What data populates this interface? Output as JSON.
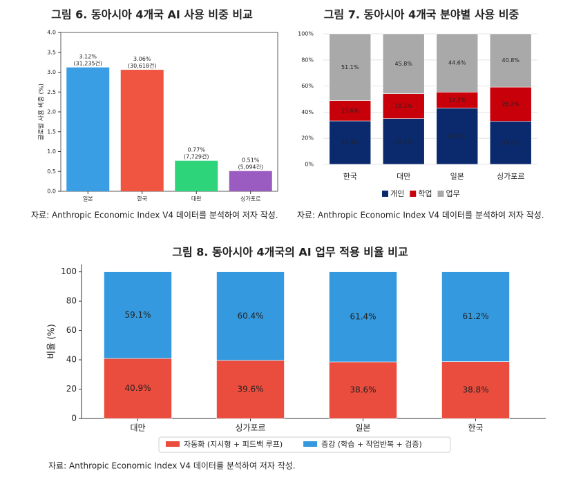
{
  "chart_data": [
    {
      "type": "bar",
      "title": "그림 6. 동아시아 4개국 AI 사용 비중 비교",
      "y_label": "글로벌 사용 비중 (%)",
      "categories": [
        "일본",
        "한국",
        "대만",
        "싱가포르"
      ],
      "values": [
        3.12,
        3.06,
        0.77,
        0.51
      ],
      "value_labels": [
        "3.12%\n(31,235건)",
        "3.06%\n(30,618건)",
        "0.77%\n(7,729건)",
        "0.51%\n(5,094건)"
      ],
      "colors": [
        "#3a9ee4",
        "#ef5540",
        "#2ed47a",
        "#9a5cc0"
      ],
      "ylim": [
        0,
        4
      ],
      "yticks": [
        {
          "value": 0,
          "label": "0.0"
        },
        {
          "value": 0.5,
          "label": "0.5"
        },
        {
          "value": 1,
          "label": "1.0"
        },
        {
          "value": 1.5,
          "label": "1.5"
        },
        {
          "value": 2,
          "label": "2.0"
        },
        {
          "value": 2.5,
          "label": "2.5"
        },
        {
          "value": 3,
          "label": "3.0"
        },
        {
          "value": 3.5,
          "label": "3.5"
        },
        {
          "value": 4,
          "label": "4.0"
        }
      ],
      "grid": false,
      "source": "자료: Anthropic Economic Index V4 데이터를 분석하여 저자 작성."
    },
    {
      "type": "bar",
      "stacked": true,
      "title": "그림 7. 동아시아 4개국 분야별 사용 비중",
      "categories": [
        "한국",
        "대만",
        "일본",
        "싱가포르"
      ],
      "series": [
        {
          "name": "개인",
          "color": "#0b2a6e",
          "values": [
            33.3,
            35.1,
            43.1,
            33.0
          ],
          "value_labels": [
            "33.3%",
            "35.1%",
            "43.1%",
            "33.0%"
          ]
        },
        {
          "name": "학업",
          "color": "#c8000a",
          "values": [
            15.6,
            19.1,
            12.3,
            26.2
          ],
          "value_labels": [
            "15.6%",
            "19.1%",
            "12.3%",
            "26.2%"
          ]
        },
        {
          "name": "업무",
          "color": "#a9a9a9",
          "values": [
            51.1,
            45.8,
            44.6,
            40.8
          ],
          "value_labels": [
            "51.1%",
            "45.8%",
            "44.6%",
            "40.8%"
          ]
        }
      ],
      "ylim": [
        0,
        100
      ],
      "yticks": [
        {
          "value": 0,
          "label": "0%"
        },
        {
          "value": 20,
          "label": "20%"
        },
        {
          "value": 40,
          "label": "40%"
        },
        {
          "value": 60,
          "label": "60%"
        },
        {
          "value": 80,
          "label": "80%"
        },
        {
          "value": 100,
          "label": "100%"
        }
      ],
      "grid": true,
      "legend": "bottom",
      "source": "자료: Anthropic Economic Index V4 데이터를 분석하여 저자 작성."
    },
    {
      "type": "bar",
      "stacked": true,
      "title": "그림 8. 동아시아 4개국의 AI 업무 적용 비율 비교",
      "y_label": "비율 (%)",
      "categories": [
        "대만",
        "싱가포르",
        "일본",
        "한국"
      ],
      "series": [
        {
          "name": "자동화 (지시형 + 피드백 루프)",
          "color": "#ea4c3d",
          "values": [
            40.9,
            39.6,
            38.6,
            38.8
          ],
          "value_labels": [
            "40.9%",
            "39.6%",
            "38.6%",
            "38.8%"
          ]
        },
        {
          "name": "증강 (학습 + 작업반복 + 검증)",
          "color": "#3499de",
          "values": [
            59.1,
            60.4,
            61.4,
            61.2
          ],
          "value_labels": [
            "59.1%",
            "60.4%",
            "61.4%",
            "61.2%"
          ]
        }
      ],
      "ylim": [
        0,
        105
      ],
      "yticks": [
        0,
        20,
        40,
        60,
        80,
        100
      ],
      "grid": false,
      "legend": "bottom",
      "source": "자료: Anthropic Economic Index V4 데이터를 분석하여 저자 작성."
    }
  ]
}
